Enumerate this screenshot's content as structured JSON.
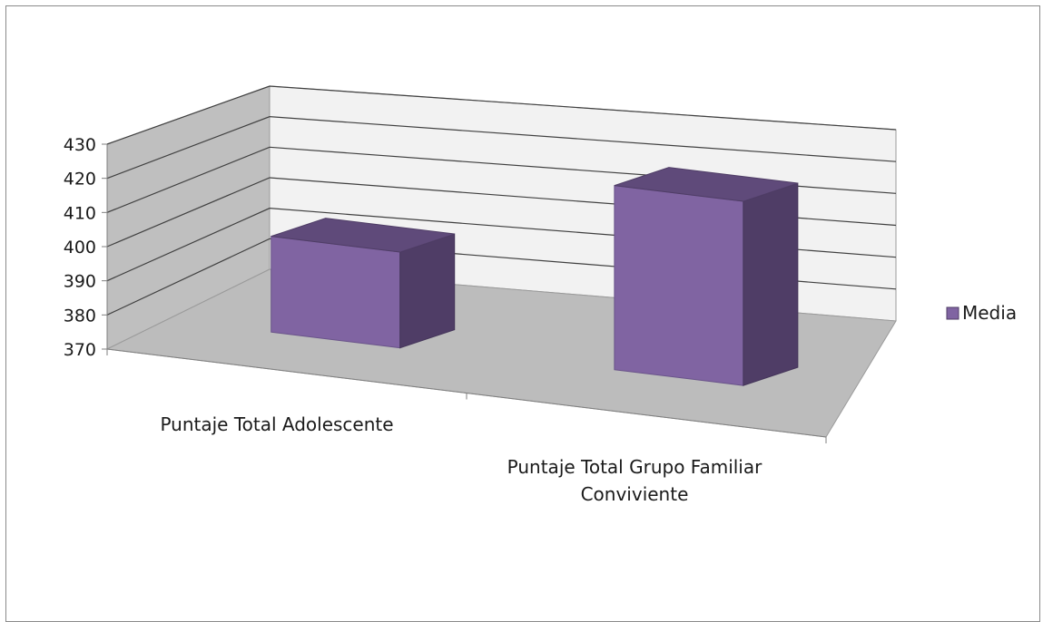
{
  "chart_data": {
    "type": "bar",
    "style": "3d-column",
    "categories": [
      "Puntaje Total Adolescente",
      "Puntaje Total Grupo Familiar Conviviente"
    ],
    "series": [
      {
        "name": "Media",
        "values": [
          396,
          420
        ]
      }
    ],
    "ylim": [
      370,
      430
    ],
    "yticks": [
      370,
      380,
      390,
      400,
      410,
      420,
      430
    ],
    "title": "",
    "xlabel": "",
    "ylabel": "",
    "grid": true,
    "legend_position": "right",
    "colors": {
      "bar_front": "#8064a2",
      "bar_top": "#5f4a7a",
      "bar_side": "#4f3d66",
      "back_wall": "#f2f2f2",
      "side_wall": "#bfbfbf",
      "floor": "#bcbcbc",
      "gridline": "#404040"
    }
  }
}
